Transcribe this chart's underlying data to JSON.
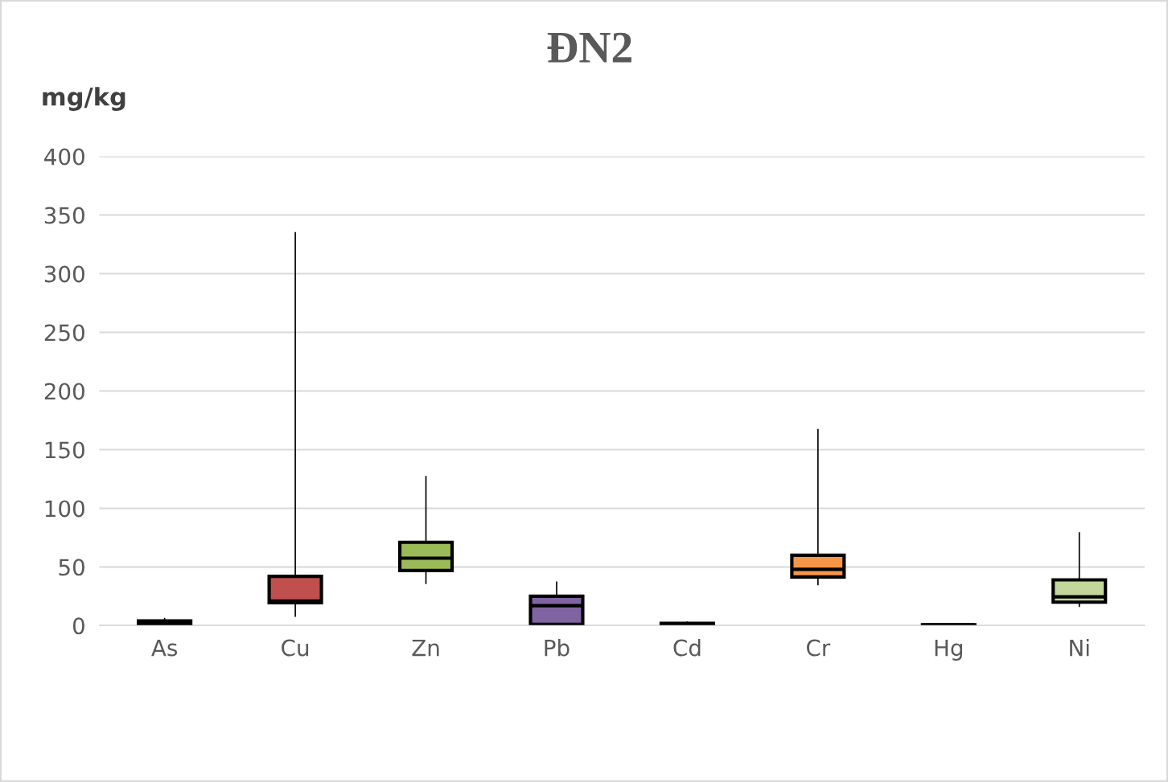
{
  "chart_data": {
    "type": "box",
    "title": "ĐN2",
    "ylabel": "mg/kg",
    "categories": [
      "As",
      "Cu",
      "Zn",
      "Pb",
      "Cd",
      "Cr",
      "Hg",
      "Ni"
    ],
    "boxes": [
      {
        "low": 0,
        "q1": 0.5,
        "median": 3,
        "q3": 4,
        "high": 6
      },
      {
        "low": 8,
        "q1": 19.5,
        "median": 21,
        "q3": 42,
        "high": 335
      },
      {
        "low": 36,
        "q1": 47,
        "median": 57.5,
        "q3": 71,
        "high": 127
      },
      {
        "low": 0,
        "q1": 1,
        "median": 17,
        "q3": 25,
        "high": 37
      },
      {
        "low": 0.5,
        "q1": 1,
        "median": 1.5,
        "q3": 2,
        "high": 3
      },
      {
        "low": 35,
        "q1": 41.5,
        "median": 48,
        "q3": 60,
        "high": 167
      },
      {
        "low": 0.1,
        "q1": 0.3,
        "median": 0.5,
        "q3": 0.7,
        "high": 0.8
      },
      {
        "low": 16.5,
        "q1": 20,
        "median": 24.5,
        "q3": 39,
        "high": 79
      }
    ],
    "colors": [
      "#9bbb59",
      "#c0504d",
      "#9bbb59",
      "#8064a2",
      "#404040",
      "#f79646",
      "#404040",
      "#c3d69b"
    ],
    "ylim": [
      0,
      400
    ],
    "yticks": [
      0,
      50,
      100,
      150,
      200,
      250,
      300,
      350,
      400
    ],
    "grid": "y"
  }
}
